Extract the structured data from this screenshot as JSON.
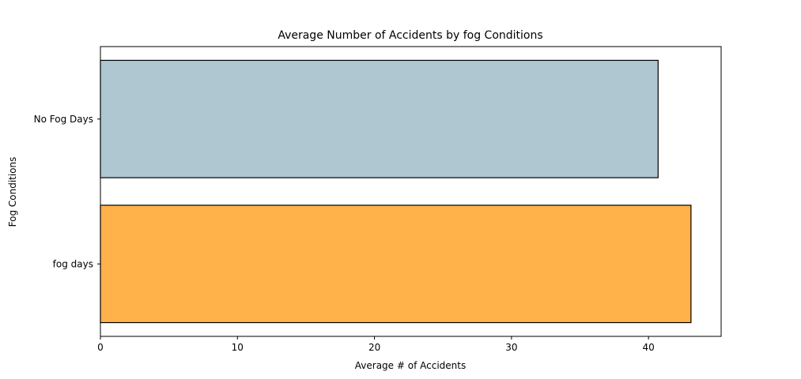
{
  "chart_data": {
    "type": "bar",
    "orientation": "horizontal",
    "title": "Average Number of Accidents by fog Conditions",
    "xlabel": "Average # of Accidents",
    "ylabel": "Fog Conditions",
    "categories": [
      "No Fog Days",
      "fog days"
    ],
    "values": [
      40.7,
      43.1
    ],
    "bar_colors": [
      "#aec7d0",
      "#ffb14a"
    ],
    "edge_color": "#000000",
    "xlim": [
      0,
      45.3
    ],
    "xticks": [
      0,
      10,
      20,
      30,
      40
    ],
    "xtick_labels": [
      "0",
      "10",
      "20",
      "30",
      "40"
    ],
    "grid": false
  }
}
